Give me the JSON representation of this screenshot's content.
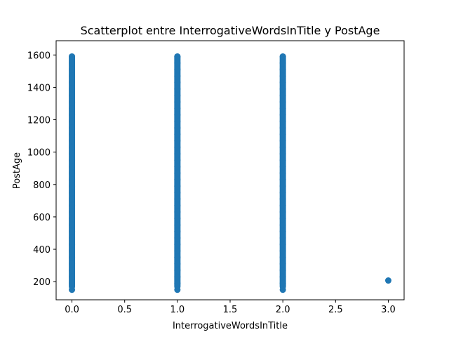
{
  "chart_data": {
    "type": "scatter",
    "title": "Scatterplot entre InterrogativeWordsInTitle y PostAge",
    "xlabel": "InterrogativeWordsInTitle",
    "ylabel": "PostAge",
    "xlim": [
      -0.15,
      3.15
    ],
    "ylim": [
      88,
      1688
    ],
    "xticks": [
      0.0,
      0.5,
      1.0,
      1.5,
      2.0,
      2.5,
      3.0
    ],
    "xtick_labels": [
      "0.0",
      "0.5",
      "1.0",
      "1.5",
      "2.0",
      "2.5",
      "3.0"
    ],
    "yticks": [
      200,
      400,
      600,
      800,
      1000,
      1200,
      1400,
      1600
    ],
    "ytick_labels": [
      "200",
      "400",
      "600",
      "800",
      "1000",
      "1200",
      "1400",
      "1600"
    ],
    "grid": false,
    "marker_color": "#1f77b4",
    "series": [
      {
        "name": "PostAge",
        "clusters": [
          {
            "x": 0,
            "y_min": 150,
            "y_max": 1610
          },
          {
            "x": 1,
            "y_min": 150,
            "y_max": 1610
          },
          {
            "x": 2,
            "y_min": 150,
            "y_max": 1610
          }
        ],
        "points": [
          {
            "x": 3,
            "y": 207
          }
        ]
      }
    ]
  }
}
